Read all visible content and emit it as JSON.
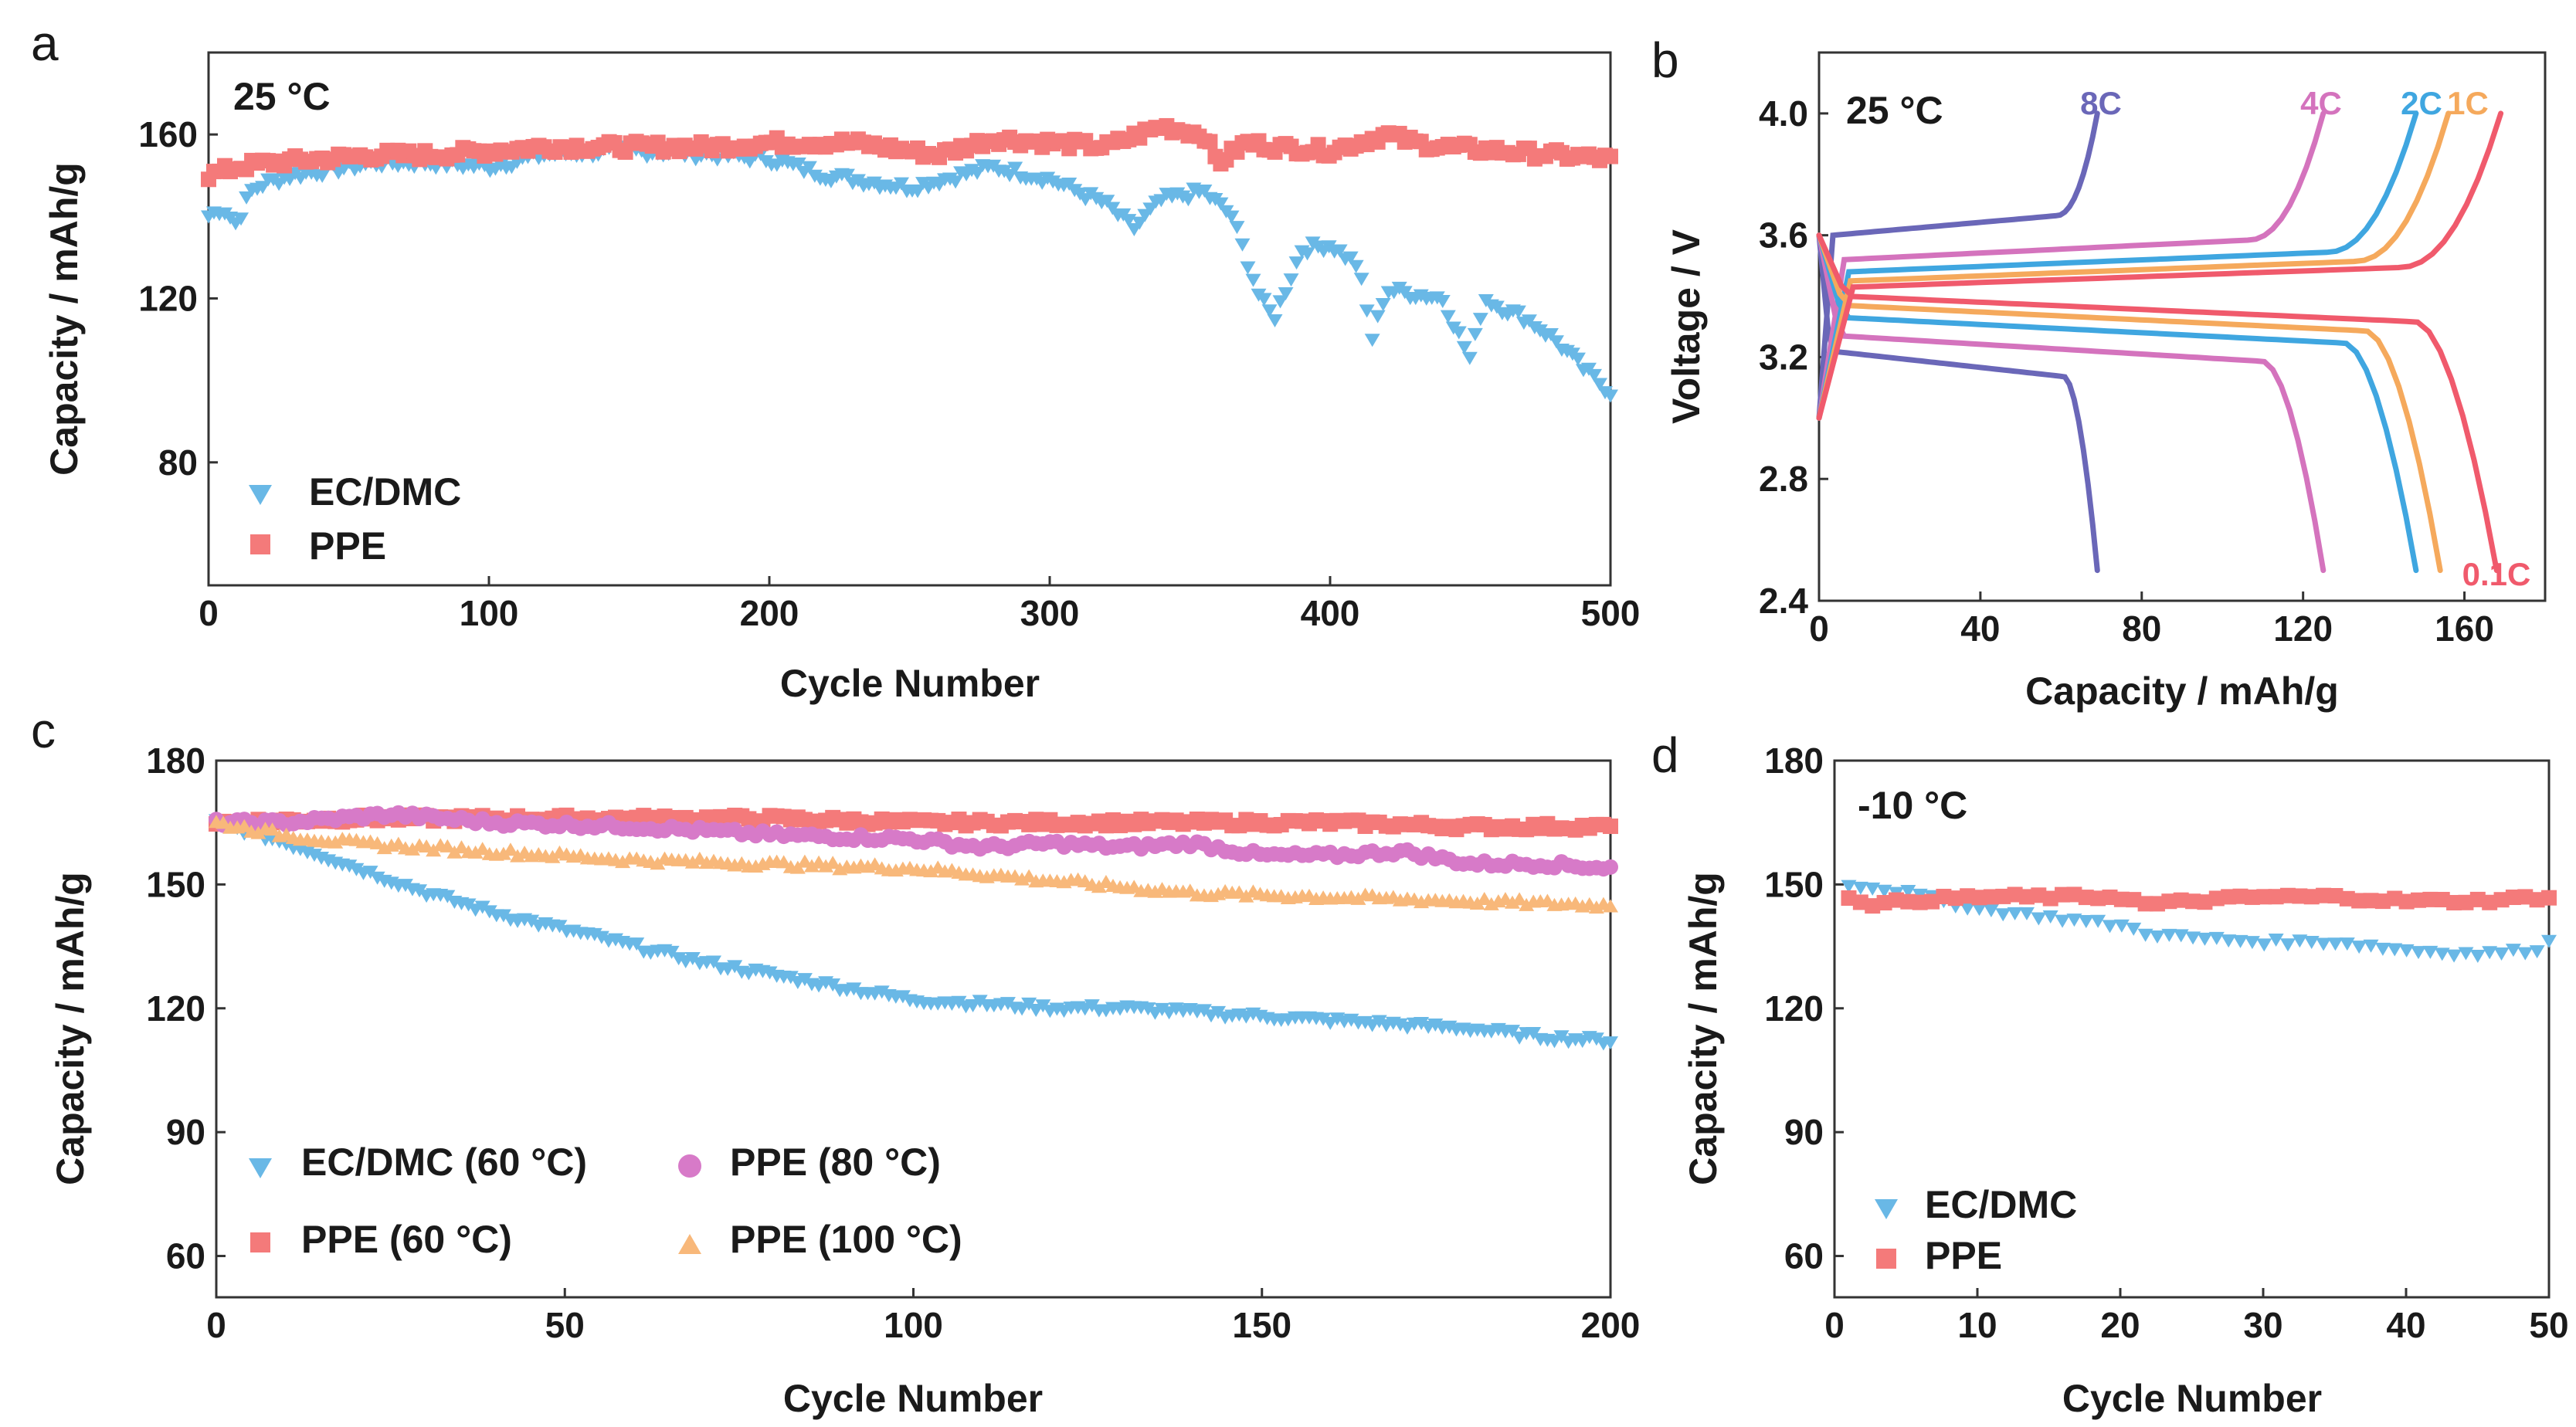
{
  "colors": {
    "ec_dmc": "#69b8e6",
    "ppe": "#f47a7a",
    "ppe80": "#d77ac8",
    "ppe100": "#f8b87a",
    "rate8C": "#6a67b8",
    "rate4C": "#d473bd",
    "rate2C": "#3fa6e0",
    "rate1C": "#f5a95c",
    "rate01C": "#f05a6c"
  },
  "chart_data": [
    {
      "id": "a",
      "type": "scatter",
      "panel_label": "a",
      "annotation": "25 °C",
      "xlabel": "Cycle Number",
      "ylabel": "Capacity / mAh/g",
      "xlim": [
        0,
        500
      ],
      "ylim": [
        50,
        180
      ],
      "xticks": [
        "0",
        "100",
        "200",
        "300",
        "400",
        "500"
      ],
      "yticks": [
        "80",
        "120",
        "160"
      ],
      "legend_position": "bottom-left",
      "series": [
        {
          "name": "EC/DMC",
          "marker": "triangle-down",
          "color_key": "ec_dmc",
          "x": [
            0,
            5,
            10,
            15,
            20,
            30,
            40,
            60,
            80,
            100,
            120,
            150,
            180,
            200,
            220,
            250,
            280,
            300,
            320,
            330,
            340,
            355,
            365,
            375,
            380,
            390,
            400,
            410,
            415,
            420,
            430,
            440,
            450,
            455,
            460,
            470,
            480,
            490,
            500
          ],
          "y": [
            140,
            142,
            138,
            146,
            148,
            150,
            151,
            153,
            153,
            152,
            155,
            156,
            155,
            154,
            150,
            147,
            152,
            149,
            143,
            137,
            144,
            146,
            140,
            120,
            115,
            132,
            133,
            128,
            110,
            122,
            121,
            120,
            105,
            120,
            118,
            115,
            110,
            103,
            97
          ]
        },
        {
          "name": "PPE",
          "marker": "square",
          "color_key": "ppe",
          "x": [
            0,
            10,
            20,
            40,
            60,
            80,
            100,
            120,
            150,
            180,
            200,
            230,
            260,
            280,
            300,
            320,
            340,
            355,
            360,
            370,
            380,
            400,
            420,
            430,
            440,
            460,
            480,
            500
          ],
          "y": [
            150,
            152,
            153,
            154,
            155,
            155,
            156,
            157,
            157,
            157,
            158,
            158,
            155,
            159,
            158,
            157,
            162,
            160,
            153,
            158,
            157,
            156,
            160,
            158,
            157,
            156,
            155,
            154
          ]
        }
      ]
    },
    {
      "id": "b",
      "type": "line",
      "panel_label": "b",
      "annotation": "25 °C",
      "xlabel": "Capacity / mAh/g",
      "ylabel": "Voltage / V",
      "xlim": [
        0,
        180
      ],
      "ylim": [
        2.4,
        4.2
      ],
      "xticks": [
        "0",
        "40",
        "80",
        "120",
        "160"
      ],
      "yticks": [
        "2.4",
        "2.8",
        "3.2",
        "3.6",
        "4.0"
      ],
      "series": [
        {
          "name": "8C",
          "color_key": "rate8C",
          "charge_cap": 69,
          "charge_plateau": 3.6,
          "discharge_cap": 69,
          "discharge_plateau": 3.22
        },
        {
          "name": "4C",
          "color_key": "rate4C",
          "charge_cap": 125,
          "charge_plateau": 3.52,
          "discharge_cap": 125,
          "discharge_plateau": 3.27
        },
        {
          "name": "2C",
          "color_key": "rate2C",
          "charge_cap": 148,
          "charge_plateau": 3.48,
          "discharge_cap": 148,
          "discharge_plateau": 3.33
        },
        {
          "name": "1C",
          "color_key": "rate1C",
          "charge_cap": 156,
          "charge_plateau": 3.45,
          "discharge_cap": 154,
          "discharge_plateau": 3.37
        },
        {
          "name": "0.1C",
          "color_key": "rate01C",
          "charge_cap": 169,
          "charge_plateau": 3.43,
          "discharge_cap": 168,
          "discharge_plateau": 3.4
        }
      ]
    },
    {
      "id": "c",
      "type": "scatter",
      "panel_label": "c",
      "xlabel": "Cycle Number",
      "ylabel": "Capacity / mAh/g",
      "xlim": [
        0,
        200
      ],
      "ylim": [
        50,
        180
      ],
      "xticks": [
        "0",
        "50",
        "100",
        "150",
        "200"
      ],
      "yticks": [
        "60",
        "90",
        "120",
        "150",
        "180"
      ],
      "legend_position": "bottom-left",
      "series": [
        {
          "name": "EC/DMC (60 °C)",
          "marker": "triangle-down",
          "color_key": "ec_dmc",
          "x": [
            0,
            10,
            20,
            30,
            40,
            50,
            60,
            70,
            80,
            90,
            100,
            110,
            120,
            130,
            140,
            150,
            160,
            170,
            180,
            190,
            200
          ],
          "y": [
            165,
            160,
            154,
            148,
            143,
            139,
            135,
            131,
            128,
            125,
            122,
            121,
            120,
            120,
            119,
            118,
            117,
            116,
            115,
            113,
            112
          ]
        },
        {
          "name": "PPE (60 °C)",
          "marker": "square",
          "color_key": "ppe",
          "x": [
            0,
            20,
            40,
            60,
            80,
            100,
            120,
            140,
            160,
            180,
            200
          ],
          "y": [
            165,
            166,
            166,
            166,
            166,
            165,
            165,
            165,
            165,
            164,
            164
          ]
        },
        {
          "name": "PPE (80 °C)",
          "marker": "circle",
          "color_key": "ppe80",
          "x": [
            0,
            10,
            25,
            40,
            60,
            80,
            100,
            110,
            120,
            130,
            140,
            150,
            160,
            170,
            180,
            190,
            200
          ],
          "y": [
            165,
            165,
            167,
            165,
            164,
            162,
            161,
            159,
            160,
            159,
            160,
            157,
            157,
            158,
            155,
            155,
            154
          ]
        },
        {
          "name": "PPE (100 °C)",
          "marker": "triangle-up",
          "color_key": "ppe100",
          "x": [
            0,
            10,
            20,
            40,
            60,
            80,
            100,
            120,
            140,
            160,
            180,
            200
          ],
          "y": [
            165,
            162,
            160,
            158,
            156,
            155,
            154,
            151,
            148,
            147,
            146,
            145
          ]
        }
      ]
    },
    {
      "id": "d",
      "type": "scatter",
      "panel_label": "d",
      "annotation": "-10 °C",
      "xlabel": "Cycle Number",
      "ylabel": "Capacity / mAh/g",
      "xlim": [
        0,
        50
      ],
      "ylim": [
        50,
        180
      ],
      "xticks": [
        "0",
        "10",
        "20",
        "30",
        "40",
        "50"
      ],
      "yticks": [
        "60",
        "90",
        "120",
        "150",
        "180"
      ],
      "legend_position": "bottom-left",
      "series": [
        {
          "name": "EC/DMC",
          "marker": "triangle-down",
          "color_key": "ec_dmc",
          "x": [
            1,
            5,
            10,
            15,
            20,
            22,
            25,
            30,
            35,
            40,
            45,
            49,
            50
          ],
          "y": [
            150,
            148,
            144,
            142,
            140,
            138,
            137,
            136,
            136,
            134,
            133,
            134,
            136
          ]
        },
        {
          "name": "PPE",
          "marker": "square",
          "color_key": "ppe",
          "x": [
            1,
            3,
            5,
            10,
            15,
            20,
            22,
            25,
            30,
            35,
            40,
            45,
            50
          ],
          "y": [
            147,
            145,
            146,
            147,
            147,
            147,
            145,
            146,
            147,
            147,
            146,
            146,
            147
          ]
        }
      ]
    }
  ]
}
